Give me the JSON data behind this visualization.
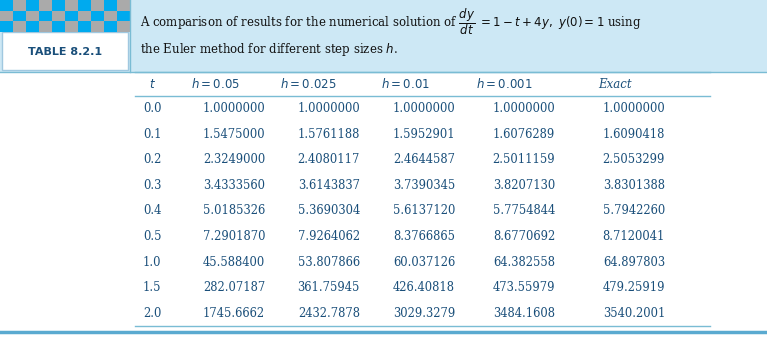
{
  "table_label": "TABLE 8.2.1",
  "headers": [
    "t",
    "h = 0.05",
    "h = 0.025",
    "h = 0.01",
    "h = 0.001",
    "Exact"
  ],
  "rows": [
    [
      "0.0",
      "1.0000000",
      "1.0000000",
      "1.0000000",
      "1.0000000",
      "1.0000000"
    ],
    [
      "0.1",
      "1.5475000",
      "1.5761188",
      "1.5952901",
      "1.6076289",
      "1.6090418"
    ],
    [
      "0.2",
      "2.3249000",
      "2.4080117",
      "2.4644587",
      "2.5011159",
      "2.5053299"
    ],
    [
      "0.3",
      "3.4333560",
      "3.6143837",
      "3.7390345",
      "3.8207130",
      "3.8301388"
    ],
    [
      "0.4",
      "5.0185326",
      "5.3690304",
      "5.6137120",
      "5.7754844",
      "5.7942260"
    ],
    [
      "0.5",
      "7.2901870",
      "7.9264062",
      "8.3766865",
      "8.6770692",
      "8.7120041"
    ],
    [
      "1.0",
      "45.588400",
      "53.807866",
      "60.037126",
      "64.382558",
      "64.897803"
    ],
    [
      "1.5",
      "282.07187",
      "361.75945",
      "426.40818",
      "473.55979",
      "479.25919"
    ],
    [
      "2.0",
      "1745.6662",
      "2432.7878",
      "3029.3279",
      "3484.1608",
      "3540.2001"
    ]
  ],
  "title_bg": "#cde8f5",
  "label_bg": "#b8d8ec",
  "label_border": "#a0c8e0",
  "checker_blue": "#00aaee",
  "checker_gray": "#aaaaaa",
  "text_color": "#1a4f7a",
  "border_color": "#7abcd4",
  "bottom_line_color": "#5aaad0",
  "fig_bg": "#ffffff",
  "data_text_color": "#1a4f7a",
  "header_italic_color": "#1a4f7a"
}
